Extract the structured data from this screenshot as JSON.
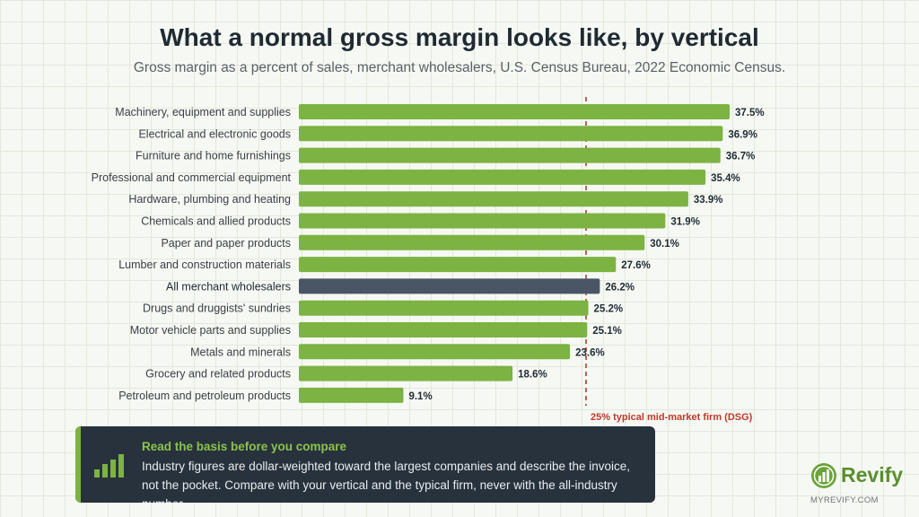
{
  "header": {
    "title": "What a normal gross margin looks like, by vertical",
    "subtitle": "Gross margin as a percent of sales, merchant wholesalers, U.S. Census Bureau, 2022 Economic Census."
  },
  "chart_data": {
    "type": "bar",
    "orientation": "horizontal",
    "categories": [
      "Machinery, equipment and supplies",
      "Electrical and electronic goods",
      "Furniture and home furnishings",
      "Professional and commercial equipment",
      "Hardware, plumbing and heating",
      "Chemicals and allied products",
      "Paper and paper products",
      "Lumber and construction materials",
      "All merchant wholesalers",
      "Drugs and druggists' sundries",
      "Motor vehicle parts and supplies",
      "Metals and minerals",
      "Grocery and related products",
      "Petroleum and petroleum products"
    ],
    "values": [
      37.5,
      36.9,
      36.7,
      35.4,
      33.9,
      31.9,
      30.1,
      27.6,
      26.2,
      25.2,
      25.1,
      23.6,
      18.6,
      9.1
    ],
    "value_labels": [
      "37.5%",
      "36.9%",
      "36.7%",
      "35.4%",
      "33.9%",
      "31.9%",
      "30.1%",
      "27.6%",
      "26.2%",
      "25.2%",
      "25.1%",
      "23.6%",
      "18.6%",
      "9.1%"
    ],
    "highlight_category": "All merchant wholesalers",
    "xlim": [
      0,
      37.5
    ],
    "bar_color": "#7cb342",
    "highlight_color": "#4a5566",
    "reference_line": {
      "value": 25,
      "label": "25% typical mid-market firm (DSG)",
      "color": "#c0392b"
    }
  },
  "callout": {
    "title": "Read the basis before you compare",
    "body": "Industry figures are dollar-weighted toward the largest companies and describe the invoice, not the pocket. Compare with your vertical and the typical firm, never with the all-industry number.",
    "icon": "bar-chart-icon"
  },
  "brand": {
    "name": "Revify",
    "url": "MYREVIFY.COM",
    "icon": "revify-logo-icon",
    "color": "#5a8f2e"
  }
}
